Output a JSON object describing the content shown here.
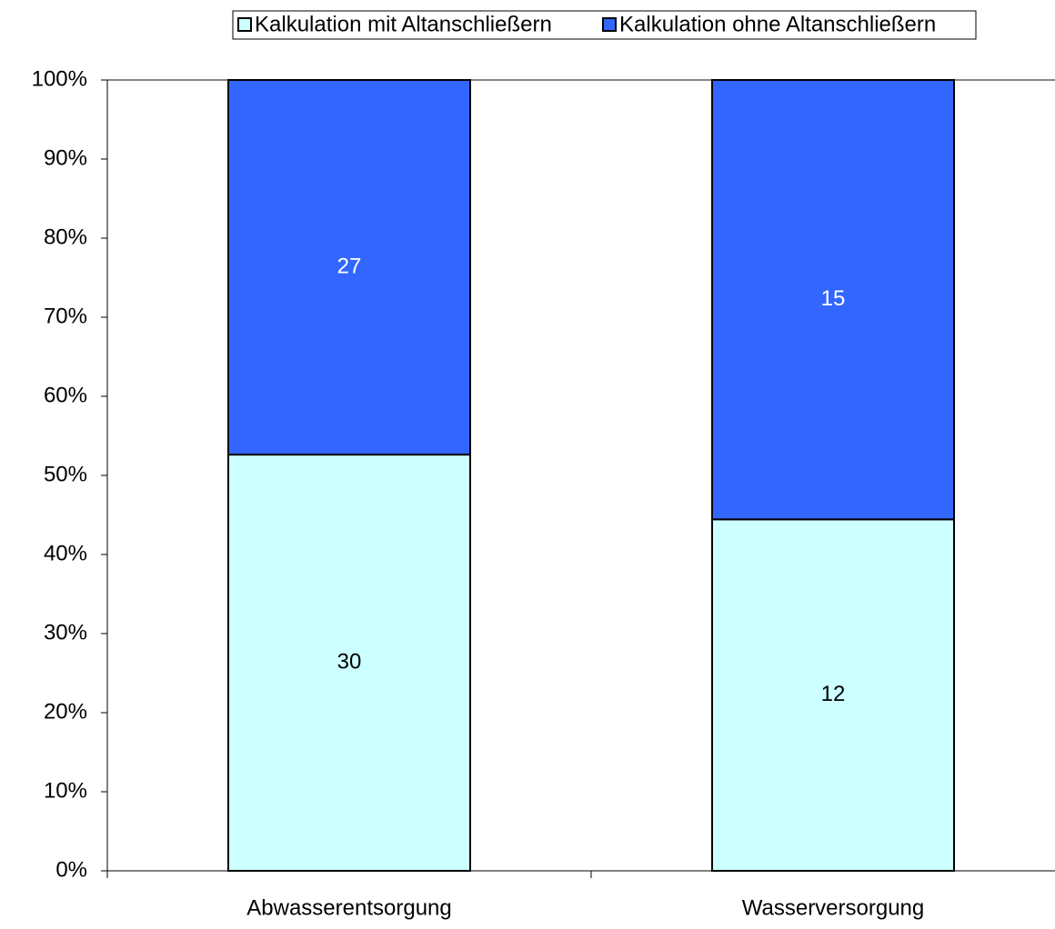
{
  "chart_data": {
    "type": "bar",
    "stacking": "percent",
    "categories": [
      "Abwasserentsorgung",
      "Wasserversorgung"
    ],
    "series": [
      {
        "name": "Kalkulation mit Altanschließern",
        "color": "#ccffff",
        "label_color": "#000000",
        "values": [
          30,
          12
        ]
      },
      {
        "name": "Kalkulation ohne Altanschließern",
        "color": "#3366ff",
        "label_color": "#ffffff",
        "values": [
          27,
          15
        ]
      }
    ],
    "ylim": [
      0,
      100
    ],
    "yticks": [
      {
        "value": 0,
        "label": "0%"
      },
      {
        "value": 10,
        "label": "10%"
      },
      {
        "value": 20,
        "label": "20%"
      },
      {
        "value": 30,
        "label": "30%"
      },
      {
        "value": 40,
        "label": "40%"
      },
      {
        "value": 50,
        "label": "50%"
      },
      {
        "value": 60,
        "label": "60%"
      },
      {
        "value": 70,
        "label": "70%"
      },
      {
        "value": 80,
        "label": "80%"
      },
      {
        "value": 90,
        "label": "90%"
      },
      {
        "value": 100,
        "label": "100%"
      }
    ],
    "legend": "top"
  }
}
